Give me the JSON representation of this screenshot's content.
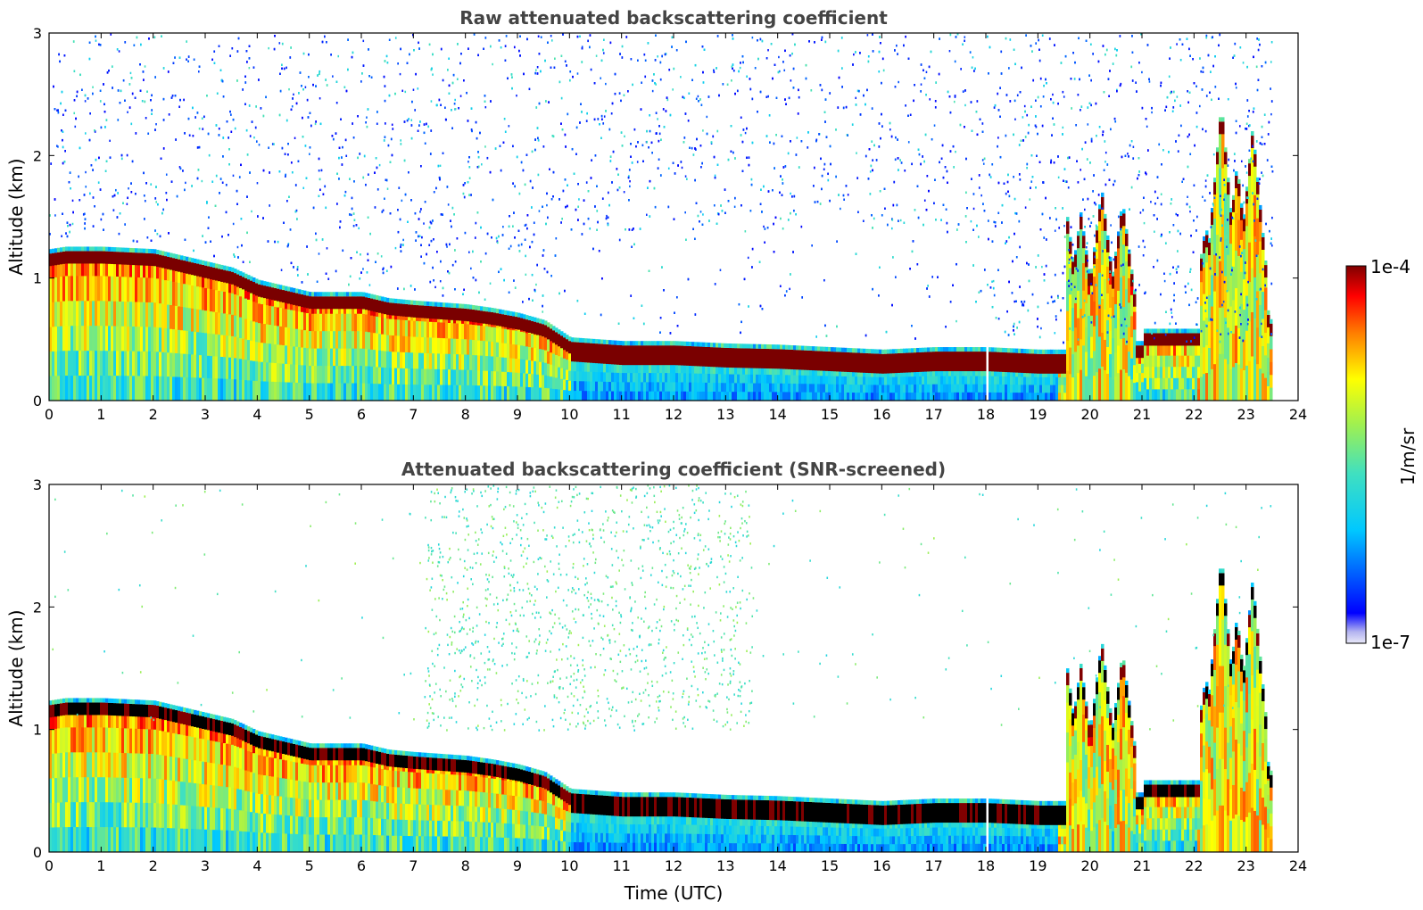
{
  "colorbar": {
    "max_label": "1e-4",
    "min_label": "1e-7",
    "unit_label": "1/m/sr",
    "scale": "log",
    "range": [
      1e-07,
      0.0001
    ]
  },
  "chart_data": [
    {
      "type": "heatmap",
      "title": "Raw attenuated backscattering coefficient",
      "xlabel": "",
      "ylabel": "Altitude (km)",
      "xlim": [
        0,
        24
      ],
      "ylim": [
        0,
        3
      ],
      "xticks": [
        "0",
        "1",
        "2",
        "3",
        "4",
        "5",
        "6",
        "7",
        "8",
        "9",
        "10",
        "11",
        "12",
        "13",
        "14",
        "15",
        "16",
        "17",
        "18",
        "19",
        "20",
        "21",
        "22",
        "23",
        "24"
      ],
      "yticks": [
        "0",
        "1",
        "2",
        "3"
      ],
      "data_end_time": 23.5,
      "layer_top_km": [
        [
          0.0,
          1.2
        ],
        [
          0.3,
          1.22
        ],
        [
          1.0,
          1.22
        ],
        [
          2.0,
          1.2
        ],
        [
          2.5,
          1.15
        ],
        [
          3.0,
          1.1
        ],
        [
          3.5,
          1.05
        ],
        [
          4.0,
          0.95
        ],
        [
          4.5,
          0.9
        ],
        [
          5.0,
          0.85
        ],
        [
          5.3,
          0.85
        ],
        [
          6.0,
          0.85
        ],
        [
          6.5,
          0.8
        ],
        [
          7.0,
          0.78
        ],
        [
          8.0,
          0.75
        ],
        [
          8.5,
          0.72
        ],
        [
          9.0,
          0.68
        ],
        [
          9.5,
          0.62
        ],
        [
          10.0,
          0.48
        ],
        [
          11.0,
          0.45
        ],
        [
          12.0,
          0.45
        ],
        [
          13.0,
          0.43
        ],
        [
          14.0,
          0.42
        ],
        [
          15.0,
          0.4
        ],
        [
          16.0,
          0.38
        ],
        [
          17.0,
          0.4
        ],
        [
          18.0,
          0.4
        ],
        [
          19.0,
          0.38
        ],
        [
          19.5,
          0.38
        ]
      ],
      "convective_bursts_km": [
        [
          19.5,
          1.6
        ],
        [
          19.8,
          1.5
        ],
        [
          20.2,
          1.7
        ],
        [
          20.6,
          1.6
        ],
        [
          22.2,
          1.4
        ],
        [
          22.5,
          2.4
        ],
        [
          22.8,
          1.9
        ],
        [
          23.1,
          2.2
        ],
        [
          23.4,
          0.7
        ]
      ]
    },
    {
      "type": "heatmap",
      "title": "Attenuated backscattering coefficient (SNR-screened)",
      "xlabel": "Time (UTC)",
      "ylabel": "Altitude (km)",
      "xlim": [
        0,
        24
      ],
      "ylim": [
        0,
        3
      ],
      "xticks": [
        "0",
        "1",
        "2",
        "3",
        "4",
        "5",
        "6",
        "7",
        "8",
        "9",
        "10",
        "11",
        "12",
        "13",
        "14",
        "15",
        "16",
        "17",
        "18",
        "19",
        "20",
        "21",
        "22",
        "23",
        "24"
      ],
      "yticks": [
        "0",
        "1",
        "2",
        "3"
      ],
      "data_end_time": 23.5,
      "layer_top_km": [
        [
          0.0,
          1.2
        ],
        [
          0.3,
          1.22
        ],
        [
          1.0,
          1.22
        ],
        [
          2.0,
          1.2
        ],
        [
          2.5,
          1.15
        ],
        [
          3.0,
          1.1
        ],
        [
          3.5,
          1.05
        ],
        [
          4.0,
          0.95
        ],
        [
          4.5,
          0.9
        ],
        [
          5.0,
          0.85
        ],
        [
          5.3,
          0.85
        ],
        [
          6.0,
          0.85
        ],
        [
          6.5,
          0.8
        ],
        [
          7.0,
          0.78
        ],
        [
          8.0,
          0.75
        ],
        [
          8.5,
          0.72
        ],
        [
          9.0,
          0.68
        ],
        [
          9.5,
          0.62
        ],
        [
          10.0,
          0.48
        ],
        [
          11.0,
          0.45
        ],
        [
          12.0,
          0.45
        ],
        [
          13.0,
          0.43
        ],
        [
          14.0,
          0.42
        ],
        [
          15.0,
          0.4
        ],
        [
          16.0,
          0.38
        ],
        [
          17.0,
          0.4
        ],
        [
          18.0,
          0.4
        ],
        [
          19.0,
          0.38
        ],
        [
          19.5,
          0.38
        ]
      ],
      "convective_bursts_km": [
        [
          19.5,
          1.6
        ],
        [
          19.8,
          1.5
        ],
        [
          20.2,
          1.7
        ],
        [
          20.6,
          1.6
        ],
        [
          22.2,
          1.4
        ],
        [
          22.5,
          2.4
        ],
        [
          22.8,
          1.9
        ],
        [
          23.1,
          2.2
        ],
        [
          23.4,
          0.7
        ]
      ]
    }
  ]
}
